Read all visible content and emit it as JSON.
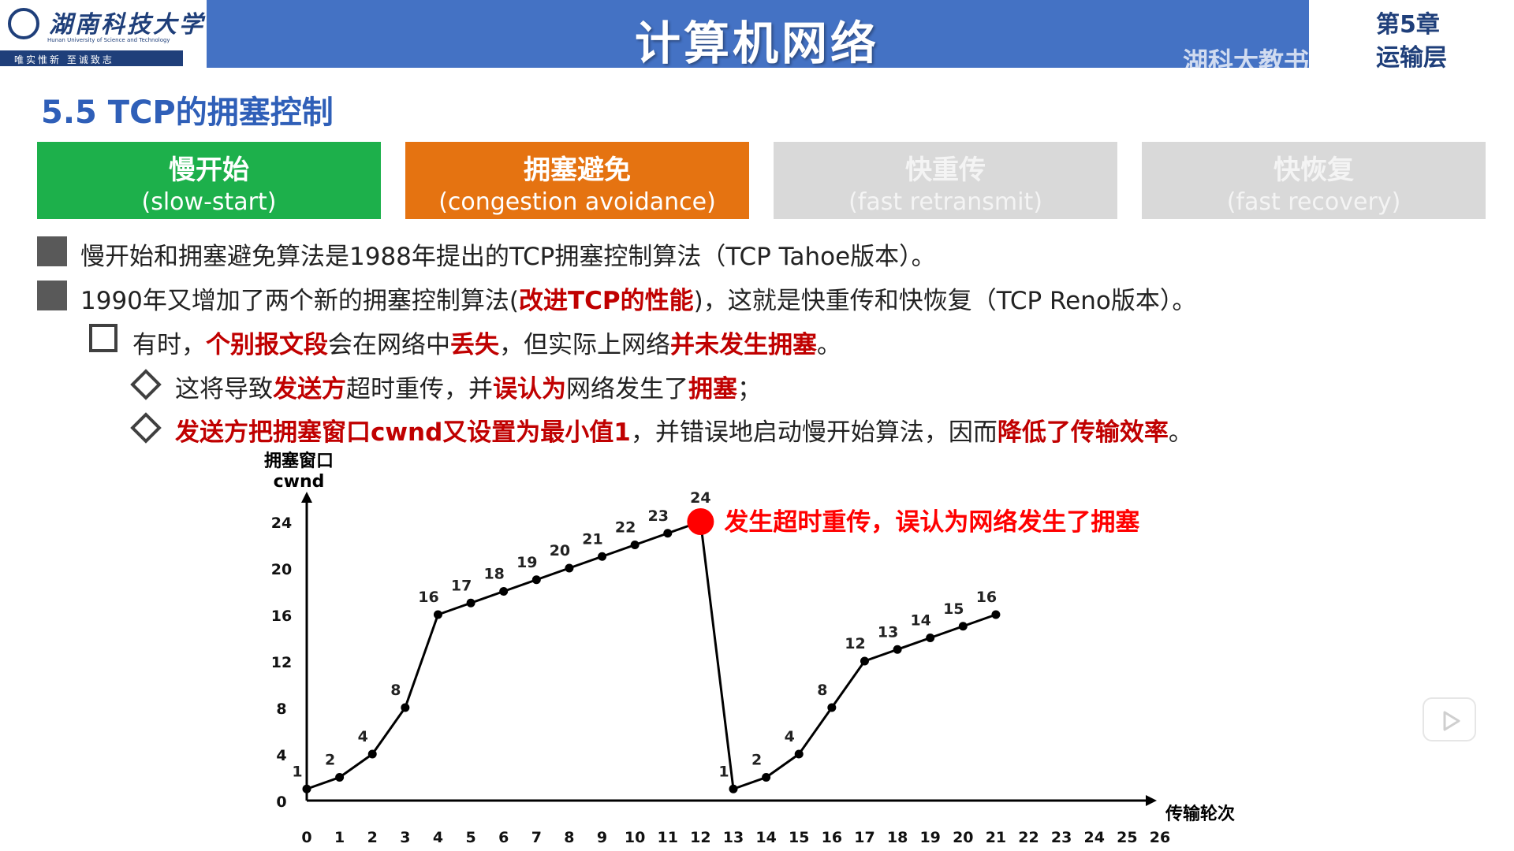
{
  "header": {
    "logo_cn": "湖南科技大学",
    "logo_en": "Hunan University of Science and Technology",
    "motto": "唯实惟新  至诚致志",
    "title": "计算机网络",
    "chapter": "第5章",
    "chapter_sub": "运输层",
    "watermark": "湖科大教书匠"
  },
  "section_title": "5.5 TCP的拥塞控制",
  "phases": [
    {
      "title": "慢开始",
      "subtitle": "(slow-start)",
      "color": "#1db04b"
    },
    {
      "title": "拥塞避免",
      "subtitle": "(congestion avoidance)",
      "color": "#e57311"
    },
    {
      "title": "快重传",
      "subtitle": "(fast retransmit)",
      "color": "#d9d9d9"
    },
    {
      "title": "快恢复",
      "subtitle": "(fast recovery)",
      "color": "#d9d9d9"
    }
  ],
  "bullets": {
    "b1": "慢开始和拥塞避免算法是1988年提出的TCP拥塞控制算法（TCP Tahoe版本）。",
    "b2": {
      "p1": "1990年又增加了两个新的拥塞控制算法(",
      "p2": "改进TCP的性能",
      "p3": ")，这就是快重传和快恢复（TCP Reno版本）。"
    },
    "b3": {
      "p1": "有时，",
      "p2": "个别报文段",
      "p3": "会在网络中",
      "p4": "丢失",
      "p5": "，但实际上网络",
      "p6": "并未发生拥塞",
      "p7": "。"
    },
    "b4": {
      "p1": "这将导致",
      "p2": "发送方",
      "p3": "超时重传，并",
      "p4": "误认为",
      "p5": "网络发生了",
      "p6": "拥塞",
      "p7": "；"
    },
    "b5": {
      "p1": "发送方把拥塞窗口cwnd又设置为最小值1",
      "p2": "，并错误地启动慢开始算法，因而",
      "p3": "降低了传输效率",
      "p4": "。"
    }
  },
  "chart_data": {
    "type": "line",
    "ylabel": "拥塞窗口\ncwnd",
    "xlabel": "传输轮次",
    "x_ticks": [
      0,
      1,
      2,
      3,
      4,
      5,
      6,
      7,
      8,
      9,
      10,
      11,
      12,
      13,
      14,
      15,
      16,
      17,
      18,
      19,
      20,
      21,
      22,
      23,
      24,
      25,
      26
    ],
    "y_ticks": [
      0,
      4,
      8,
      12,
      16,
      20,
      24
    ],
    "xlim": [
      0,
      26
    ],
    "ylim": [
      0,
      24
    ],
    "series": [
      {
        "x": [
          0,
          1,
          2,
          3,
          4,
          5,
          6,
          7,
          8,
          9,
          10,
          11,
          12,
          13,
          14,
          15,
          16,
          17,
          18,
          19,
          20,
          21
        ],
        "y": [
          1,
          2,
          4,
          8,
          16,
          17,
          18,
          19,
          20,
          21,
          22,
          23,
          24,
          1,
          2,
          4,
          8,
          12,
          13,
          14,
          15,
          16
        ]
      }
    ],
    "annotation": {
      "x": 12,
      "y": 24,
      "text": "发生超时重传，误认为网络发生了拥塞",
      "color": "#ff0000"
    }
  }
}
